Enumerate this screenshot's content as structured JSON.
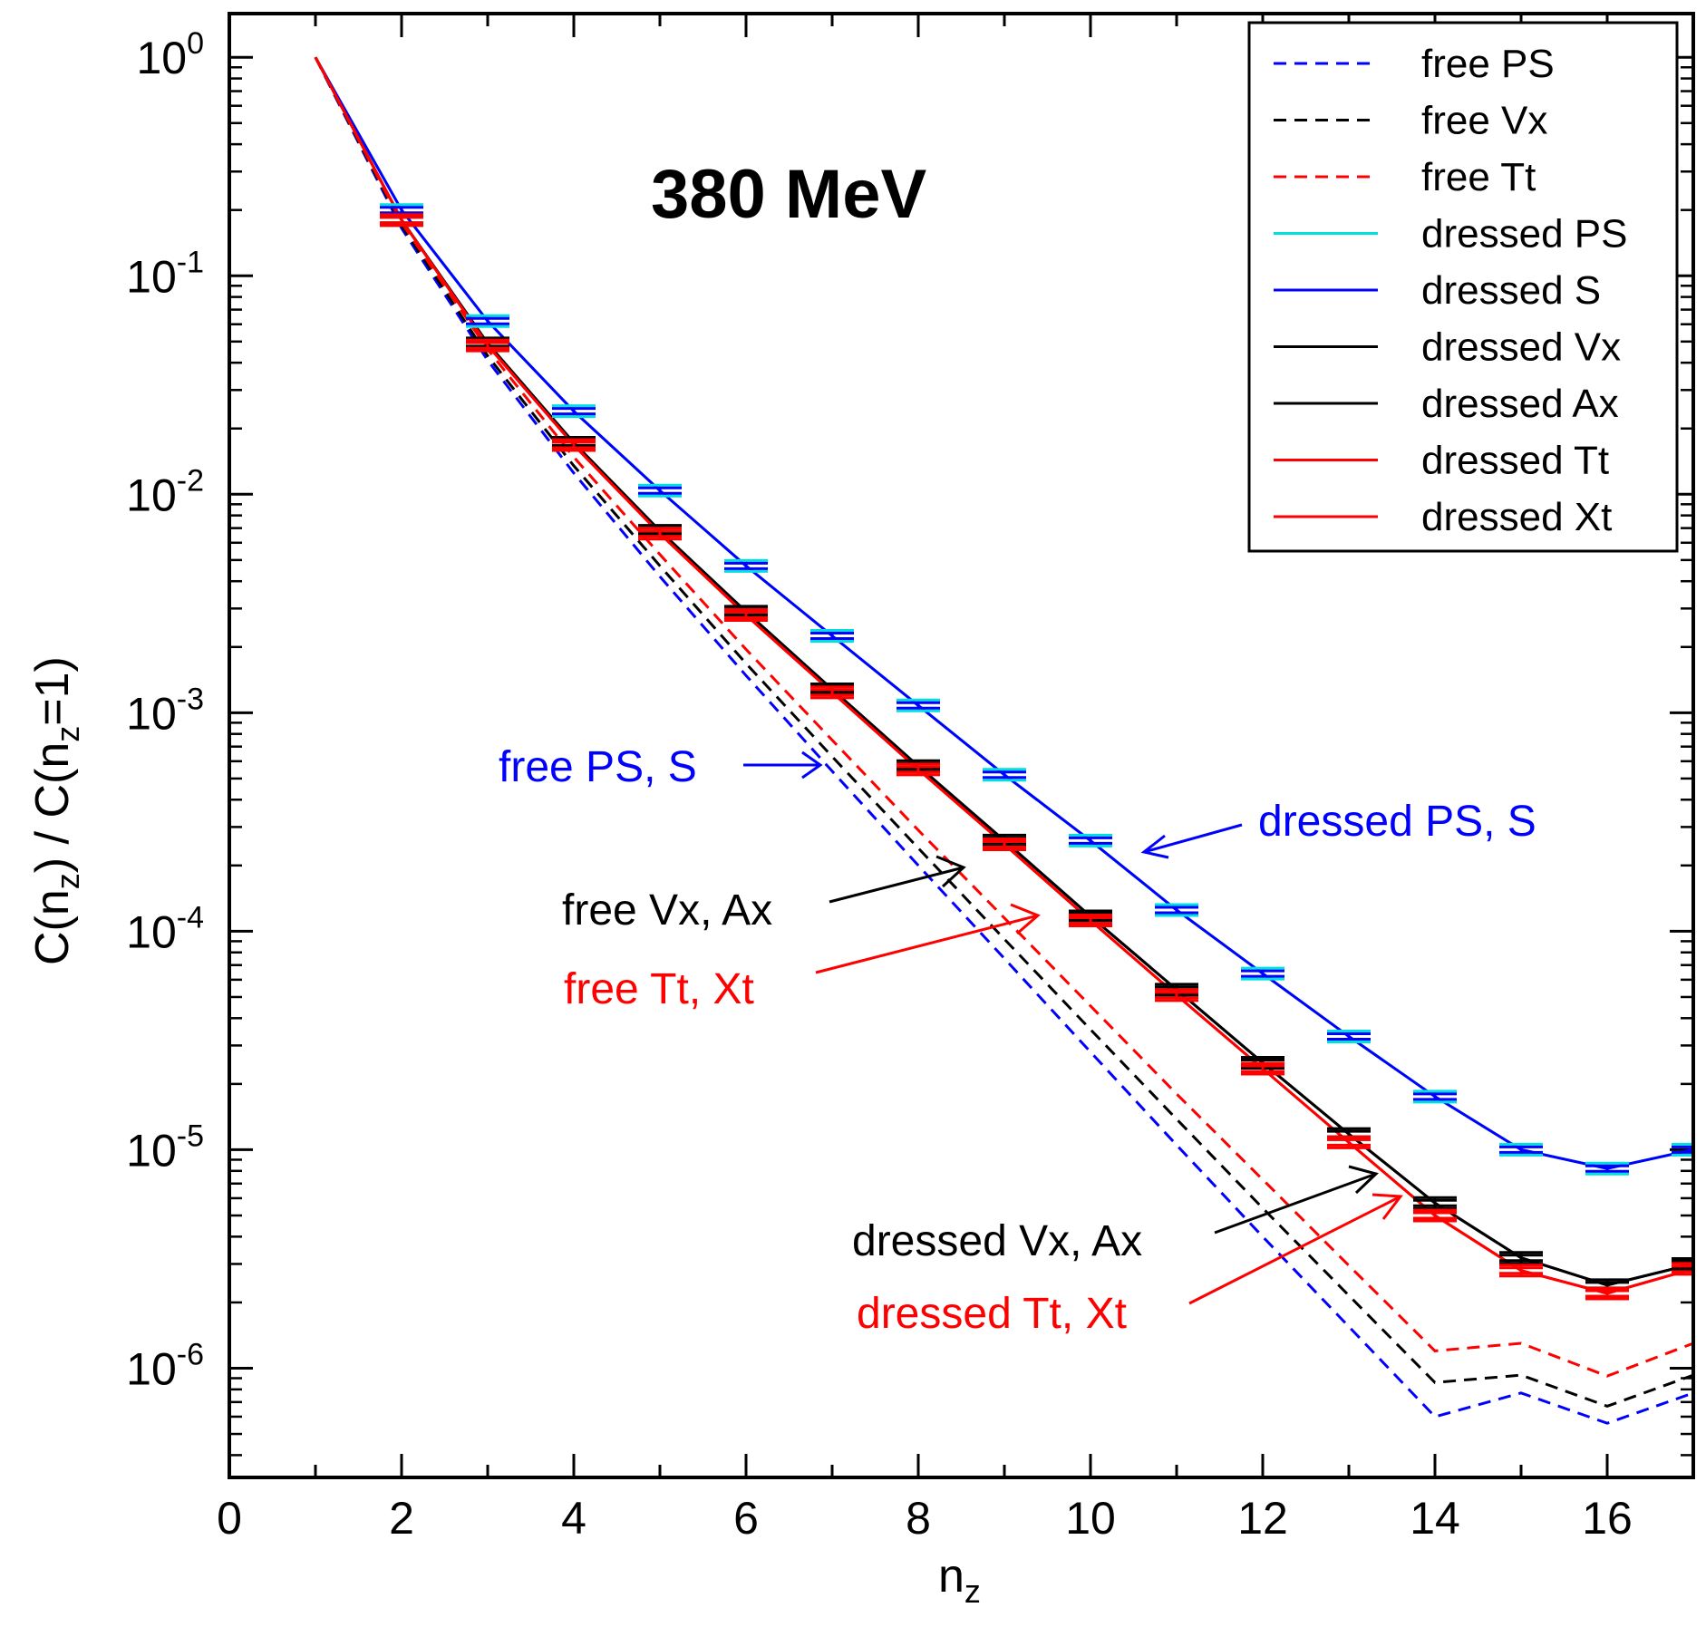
{
  "chart_data": {
    "type": "line",
    "title": "380 MeV",
    "xlabel": "n",
    "xlabel_sub": "z",
    "ylabel_parts": [
      "C(n",
      "z",
      ") / C(n",
      "z",
      "=1)"
    ],
    "xlim": [
      0,
      17
    ],
    "ylim_log10": [
      -6.5,
      0.2
    ],
    "yscale": "log",
    "x_ticks": [
      0,
      2,
      4,
      6,
      8,
      10,
      12,
      14,
      16
    ],
    "x_tick_labels": [
      "0",
      "2",
      "4",
      "6",
      "8",
      "10",
      "12",
      "14",
      "16"
    ],
    "y_ticks": [
      {
        "exp": 0,
        "base": "10",
        "sup": "0"
      },
      {
        "exp": -1,
        "base": "10",
        "sup": "-1"
      },
      {
        "exp": -2,
        "base": "10",
        "sup": "-2"
      },
      {
        "exp": -3,
        "base": "10",
        "sup": "-3"
      },
      {
        "exp": -4,
        "base": "10",
        "sup": "-4"
      },
      {
        "exp": -5,
        "base": "10",
        "sup": "-5"
      },
      {
        "exp": -6,
        "base": "10",
        "sup": "-6"
      }
    ],
    "x": [
      1,
      2,
      3,
      4,
      5,
      6,
      7,
      8,
      9,
      10,
      11,
      12,
      13,
      14,
      15,
      16,
      17
    ],
    "series": [
      {
        "name": "free PS",
        "color": "#0000ff",
        "style": "dashed",
        "errorbars": false,
        "values": [
          1.0,
          0.165,
          0.041,
          0.0125,
          0.0042,
          0.00148,
          0.00054,
          0.0002,
          7.5e-05,
          2.8e-05,
          1.05e-05,
          4e-06,
          1.55e-06,
          6e-07,
          7.7e-07,
          5.6e-07,
          7.7e-07
        ]
      },
      {
        "name": "free Vx",
        "color": "#000000",
        "style": "dashed",
        "errorbars": false,
        "values": [
          1.0,
          0.17,
          0.043,
          0.0135,
          0.0047,
          0.00168,
          0.00063,
          0.00024,
          9.2e-05,
          3.55e-05,
          1.38e-05,
          5.4e-06,
          2.15e-06,
          8.6e-07,
          9.3e-07,
          6.7e-07,
          9.3e-07
        ]
      },
      {
        "name": "free Tt",
        "color": "#ff0000",
        "style": "dashed",
        "errorbars": false,
        "values": [
          1.0,
          0.175,
          0.046,
          0.0148,
          0.0053,
          0.00195,
          0.00075,
          0.00029,
          0.000115,
          4.55e-05,
          1.8e-05,
          7.3e-06,
          2.95e-06,
          1.2e-06,
          1.3e-06,
          9.2e-07,
          1.3e-06
        ]
      },
      {
        "name": "dressed PS",
        "color": "#00e0e0",
        "style": "solid",
        "errorbars": true,
        "values": [
          1.0,
          0.2,
          0.062,
          0.024,
          0.0104,
          0.0047,
          0.00225,
          0.00108,
          0.00052,
          0.00026,
          0.000125,
          6.4e-05,
          3.3e-05,
          1.75e-05,
          1e-05,
          8.2e-06,
          1e-05
        ]
      },
      {
        "name": "dressed S",
        "color": "#0000ff",
        "style": "solid",
        "errorbars": true,
        "values": [
          1.0,
          0.2,
          0.062,
          0.024,
          0.0104,
          0.0047,
          0.00225,
          0.00108,
          0.00052,
          0.00026,
          0.000125,
          6.4e-05,
          3.3e-05,
          1.75e-05,
          1e-05,
          8.2e-06,
          1e-05
        ]
      },
      {
        "name": "dressed Vx",
        "color": "#000000",
        "style": "solid",
        "errorbars": true,
        "values": [
          1.0,
          0.18,
          0.049,
          0.0172,
          0.0068,
          0.0029,
          0.00128,
          0.00057,
          0.00026,
          0.000117,
          5.4e-05,
          2.5e-05,
          1.18e-05,
          5.7e-06,
          3.2e-06,
          2.4e-06,
          3e-06
        ]
      },
      {
        "name": "dressed Ax",
        "color": "#000000",
        "style": "solid",
        "errorbars": true,
        "values": [
          1.0,
          0.18,
          0.049,
          0.0172,
          0.0068,
          0.0029,
          0.00128,
          0.00057,
          0.00026,
          0.000117,
          5.4e-05,
          2.5e-05,
          1.18e-05,
          5.7e-06,
          3.2e-06,
          2.4e-06,
          3e-06
        ]
      },
      {
        "name": "dressed Tt",
        "color": "#ff0000",
        "style": "solid",
        "errorbars": true,
        "values": [
          1.0,
          0.18,
          0.048,
          0.0168,
          0.0066,
          0.0028,
          0.00124,
          0.00055,
          0.00025,
          0.000112,
          5.1e-05,
          2.35e-05,
          1.08e-05,
          5e-06,
          2.8e-06,
          2.2e-06,
          2.85e-06
        ]
      },
      {
        "name": "dressed Xt",
        "color": "#ff0000",
        "style": "solid",
        "errorbars": true,
        "values": [
          1.0,
          0.18,
          0.048,
          0.0168,
          0.0066,
          0.0028,
          0.00124,
          0.00055,
          0.00025,
          0.000112,
          5.1e-05,
          2.35e-05,
          1.08e-05,
          5e-06,
          2.8e-06,
          2.2e-06,
          2.85e-06
        ]
      }
    ],
    "legend_position": "top-right",
    "annotations": [
      {
        "text": "free PS, S",
        "color": "#0000ff"
      },
      {
        "text": "dressed PS, S",
        "color": "#0000ff"
      },
      {
        "text": "free Vx, Ax",
        "color": "#000000"
      },
      {
        "text": "free Tt, Xt",
        "color": "#ff0000"
      },
      {
        "text": "dressed Vx, Ax",
        "color": "#000000"
      },
      {
        "text": "dressed Tt, Xt",
        "color": "#ff0000"
      }
    ]
  }
}
